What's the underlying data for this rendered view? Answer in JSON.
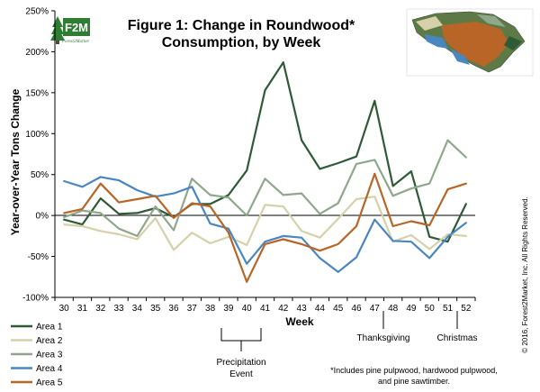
{
  "chart_data": {
    "type": "line",
    "title_lines": [
      "Figure 1: Change in Roundwood*",
      "Consumption, by Week"
    ],
    "xlabel": "Week",
    "ylabel": "Year-over-Year Tons Change",
    "categories": [
      "30",
      "31",
      "32",
      "33",
      "34",
      "35",
      "36",
      "37",
      "38",
      "39",
      "40",
      "41",
      "42",
      "43",
      "44",
      "45",
      "46",
      "47",
      "48",
      "49",
      "50",
      "51",
      "52"
    ],
    "ylim": [
      -100,
      250
    ],
    "yticks": [
      -100,
      -50,
      0,
      50,
      100,
      150,
      200,
      250
    ],
    "ytick_labels": [
      "-100%",
      "-50%",
      "0%",
      "50%",
      "100%",
      "150%",
      "200%",
      "250%"
    ],
    "series": [
      {
        "name": "Area 1",
        "color": "#2e5b36",
        "values": [
          -5,
          -11,
          21,
          2,
          3,
          9,
          -2,
          14,
          14,
          25,
          55,
          153,
          187,
          92,
          57,
          64,
          72,
          140,
          36,
          54,
          -26,
          -32,
          14
        ]
      },
      {
        "name": "Area 2",
        "color": "#d6d1aa",
        "values": [
          -11,
          -13,
          -19,
          -23,
          -29,
          -3,
          -42,
          -21,
          -34,
          -26,
          -36,
          13,
          11,
          -19,
          -27,
          -4,
          20,
          23,
          -32,
          -24,
          -41,
          -23,
          -25
        ]
      },
      {
        "name": "Area 3",
        "color": "#8fa88c",
        "values": [
          -2,
          6,
          3,
          -16,
          -25,
          11,
          -18,
          45,
          25,
          22,
          0,
          45,
          25,
          27,
          2,
          15,
          63,
          68,
          24,
          33,
          39,
          92,
          71
        ]
      },
      {
        "name": "Area 4",
        "color": "#4a86c0",
        "values": [
          42,
          35,
          47,
          43,
          31,
          23,
          27,
          35,
          -10,
          -16,
          -59,
          -32,
          -25,
          -27,
          -52,
          -69,
          -51,
          -5,
          -31,
          -32,
          -52,
          -26,
          -9
        ]
      },
      {
        "name": "Area 5",
        "color": "#b86527",
        "values": [
          3,
          8,
          39,
          16,
          20,
          24,
          -3,
          15,
          11,
          -21,
          -81,
          -35,
          -29,
          -35,
          -43,
          -35,
          -13,
          51,
          -13,
          -7,
          -12,
          32,
          39
        ]
      }
    ],
    "grid": false,
    "legend_position": "bottom-left",
    "annotations": [
      {
        "text": "Precipitation Event",
        "lines": [
          "Precipitation",
          "Event"
        ],
        "weeks": [
          "39",
          "40"
        ]
      },
      {
        "text": "Thanksgiving",
        "week": "47"
      },
      {
        "text": "Christmas",
        "week": "51"
      }
    ],
    "footnote_lines": [
      "*Includes pine pulpwood, hardwood pulpwood,",
      "and pine sawtimber."
    ],
    "copyright": "© 2016, Forest2Market, Inc. All Rights Reserved."
  },
  "logo": {
    "mark": "F2M",
    "tagline": "Forest2Market"
  },
  "map_icon": "south-carolina-map-icon"
}
